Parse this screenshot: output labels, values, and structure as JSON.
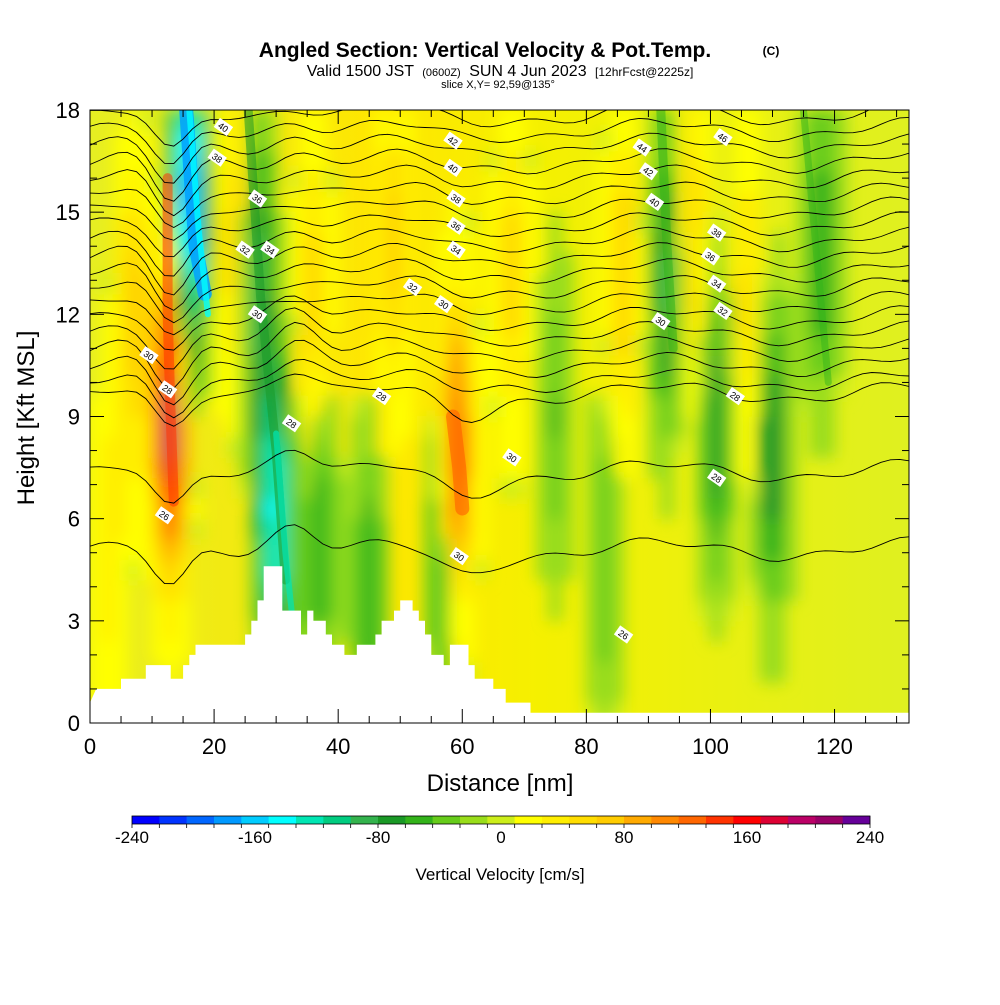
{
  "chart_data": {
    "type": "heatmap",
    "title": "Angled Section: Vertical Velocity & Pot.Temp.",
    "title_mark": "(C)",
    "subtitle": {
      "valid": "Valid 1500 JST",
      "zulu": "(0600Z)",
      "date": "SUN 4 Jun 2023",
      "forecast": "[12hrFcst@2225z]"
    },
    "slice_label": "slice X,Y= 92,59@135°",
    "xlabel": "Distance [nm]",
    "ylabel": "Height [Kft MSL]",
    "xlim": [
      0,
      132
    ],
    "ylim": [
      0,
      18
    ],
    "x_ticks": [
      0,
      20,
      40,
      60,
      80,
      100,
      120
    ],
    "y_ticks": [
      0,
      3,
      6,
      9,
      12,
      15,
      18
    ],
    "colorbar": {
      "label": "Vertical Velocity [cm/s]",
      "range": [
        -240,
        240
      ],
      "tick_labels": [
        -240,
        -160,
        -80,
        0,
        80,
        160,
        240
      ],
      "colors": [
        "#0000ff",
        "#0033ff",
        "#0066ff",
        "#0099ff",
        "#00ccff",
        "#00ffff",
        "#00e6b3",
        "#00cc80",
        "#33b34d",
        "#1a9926",
        "#33b31a",
        "#66cc1a",
        "#99dd1a",
        "#ccee1a",
        "#ffff00",
        "#ffee00",
        "#ffdd00",
        "#ffcc00",
        "#ffaa00",
        "#ff8800",
        "#ff6600",
        "#ff3300",
        "#ff0000",
        "#dd0033",
        "#bb0066",
        "#990066",
        "#660099"
      ]
    },
    "velocity_features": [
      {
        "x": 13,
        "z": 9,
        "w": 200
      },
      {
        "x": 16,
        "z": 15,
        "w": -200
      },
      {
        "x": 27,
        "z": 13,
        "w": -90
      },
      {
        "x": 30,
        "z": 6,
        "w": -150
      },
      {
        "x": 23,
        "z": 14,
        "w": 60
      },
      {
        "x": 36,
        "z": 12,
        "w": 70
      },
      {
        "x": 59,
        "z": 7.8,
        "w": 160
      },
      {
        "x": 49,
        "z": 14,
        "w": 70
      },
      {
        "x": 57,
        "z": 5,
        "w": -80
      },
      {
        "x": 37,
        "z": 6,
        "w": -70
      },
      {
        "x": 45,
        "z": 4,
        "w": -60
      },
      {
        "x": 93,
        "z": 13,
        "w": -90
      },
      {
        "x": 101,
        "z": 9,
        "w": -80
      },
      {
        "x": 110,
        "z": 8,
        "w": -90
      },
      {
        "x": 118,
        "z": 14,
        "w": -70
      },
      {
        "x": 86,
        "z": 13,
        "w": 70
      },
      {
        "x": 97,
        "z": 14,
        "w": 70
      },
      {
        "x": 106,
        "z": 12,
        "w": 60
      },
      {
        "x": 75,
        "z": 9,
        "w": -45
      },
      {
        "x": 83,
        "z": 5,
        "w": -45
      },
      {
        "x": 7,
        "z": 12,
        "w": 70
      },
      {
        "x": 3,
        "z": 5,
        "w": 40
      },
      {
        "x": 68,
        "z": 13,
        "w": 60
      }
    ],
    "theta_contour_labels": [
      {
        "x": 21.5,
        "z": 17.5,
        "text": "40"
      },
      {
        "x": 20.5,
        "z": 16.6,
        "text": "38"
      },
      {
        "x": 27,
        "z": 15.4,
        "text": "36"
      },
      {
        "x": 29,
        "z": 13.9,
        "text": "34"
      },
      {
        "x": 25,
        "z": 13.9,
        "text": "32"
      },
      {
        "x": 27,
        "z": 12.0,
        "text": "30"
      },
      {
        "x": 9.5,
        "z": 10.8,
        "text": "30"
      },
      {
        "x": 12.5,
        "z": 9.8,
        "text": "28"
      },
      {
        "x": 32.5,
        "z": 8.8,
        "text": "28"
      },
      {
        "x": 12,
        "z": 6.1,
        "text": "26"
      },
      {
        "x": 47,
        "z": 9.6,
        "text": "28"
      },
      {
        "x": 58.5,
        "z": 17.1,
        "text": "42"
      },
      {
        "x": 58.5,
        "z": 16.3,
        "text": "40"
      },
      {
        "x": 59,
        "z": 15.4,
        "text": "38"
      },
      {
        "x": 59,
        "z": 14.6,
        "text": "36"
      },
      {
        "x": 59,
        "z": 13.9,
        "text": "34"
      },
      {
        "x": 52,
        "z": 12.8,
        "text": "32"
      },
      {
        "x": 57,
        "z": 12.3,
        "text": "30"
      },
      {
        "x": 68,
        "z": 7.8,
        "text": "30"
      },
      {
        "x": 59.5,
        "z": 4.9,
        "text": "30"
      },
      {
        "x": 89,
        "z": 16.9,
        "text": "44"
      },
      {
        "x": 102,
        "z": 17.2,
        "text": "46"
      },
      {
        "x": 90,
        "z": 16.2,
        "text": "42"
      },
      {
        "x": 91,
        "z": 15.3,
        "text": "40"
      },
      {
        "x": 101,
        "z": 14.4,
        "text": "38"
      },
      {
        "x": 100,
        "z": 13.7,
        "text": "36"
      },
      {
        "x": 101,
        "z": 12.9,
        "text": "34"
      },
      {
        "x": 102,
        "z": 12.1,
        "text": "32"
      },
      {
        "x": 92,
        "z": 11.8,
        "text": "30"
      },
      {
        "x": 104,
        "z": 9.6,
        "text": "28"
      },
      {
        "x": 101,
        "z": 7.2,
        "text": "28"
      },
      {
        "x": 86,
        "z": 2.6,
        "text": "26"
      }
    ],
    "terrain_profile": [
      [
        0,
        0.6
      ],
      [
        1,
        1.0
      ],
      [
        5,
        1.0
      ],
      [
        5,
        1.3
      ],
      [
        9,
        1.3
      ],
      [
        9,
        1.7
      ],
      [
        13,
        1.7
      ],
      [
        13,
        1.3
      ],
      [
        15,
        1.3
      ],
      [
        15,
        1.7
      ],
      [
        16,
        1.7
      ],
      [
        16,
        2.0
      ],
      [
        17,
        2.0
      ],
      [
        17,
        2.3
      ],
      [
        25,
        2.3
      ],
      [
        25,
        2.6
      ],
      [
        26,
        2.6
      ],
      [
        26,
        3.0
      ],
      [
        27,
        3.0
      ],
      [
        27,
        3.6
      ],
      [
        28,
        3.6
      ],
      [
        28,
        4.6
      ],
      [
        31,
        4.6
      ],
      [
        31,
        3.3
      ],
      [
        34,
        3.3
      ],
      [
        34,
        2.6
      ],
      [
        35,
        2.6
      ],
      [
        35,
        3.3
      ],
      [
        36,
        3.3
      ],
      [
        36,
        3.0
      ],
      [
        38,
        3.0
      ],
      [
        38,
        2.6
      ],
      [
        39,
        2.6
      ],
      [
        39,
        2.3
      ],
      [
        41,
        2.3
      ],
      [
        41,
        2.0
      ],
      [
        43,
        2.0
      ],
      [
        43,
        2.3
      ],
      [
        46,
        2.3
      ],
      [
        46,
        2.6
      ],
      [
        47,
        2.6
      ],
      [
        47,
        3.0
      ],
      [
        49,
        3.0
      ],
      [
        49,
        3.3
      ],
      [
        50,
        3.3
      ],
      [
        50,
        3.6
      ],
      [
        52,
        3.6
      ],
      [
        52,
        3.3
      ],
      [
        53,
        3.3
      ],
      [
        53,
        3.0
      ],
      [
        54,
        3.0
      ],
      [
        54,
        2.6
      ],
      [
        55,
        2.6
      ],
      [
        55,
        2.0
      ],
      [
        57,
        2.0
      ],
      [
        57,
        1.7
      ],
      [
        58,
        1.7
      ],
      [
        58,
        2.3
      ],
      [
        61,
        2.3
      ],
      [
        61,
        1.7
      ],
      [
        62,
        1.7
      ],
      [
        62,
        1.3
      ],
      [
        65,
        1.3
      ],
      [
        65,
        1.0
      ],
      [
        67,
        1.0
      ],
      [
        67,
        0.6
      ],
      [
        71,
        0.6
      ],
      [
        71,
        0.3
      ],
      [
        132,
        0.3
      ]
    ]
  }
}
